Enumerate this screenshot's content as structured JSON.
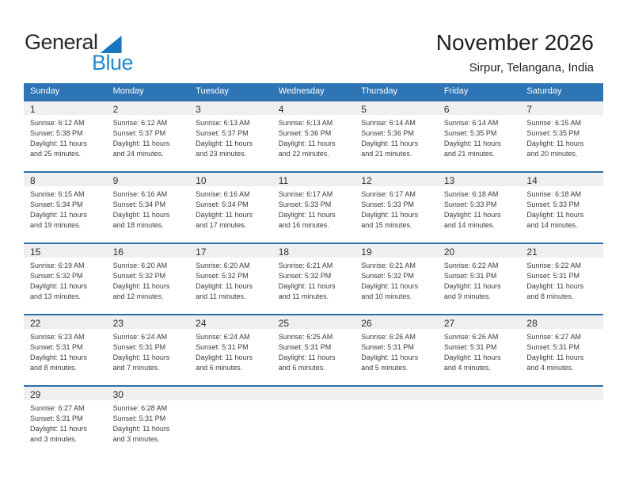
{
  "logo": {
    "general": "General",
    "blue": "Blue"
  },
  "header": {
    "title": "November 2026",
    "subtitle": "Sirpur, Telangana, India"
  },
  "weekday_headers": [
    "Sunday",
    "Monday",
    "Tuesday",
    "Wednesday",
    "Thursday",
    "Friday",
    "Saturday"
  ],
  "colors": {
    "header_bg": "#2e75b6",
    "week_line": "#2c70ad",
    "day_strip_bg": "#efefef",
    "logo_triangle": "#1b75bc",
    "logo_blue_text": "#2288cf"
  },
  "weeks": [
    [
      {
        "day": "1",
        "sunrise": "Sunrise: 6:12 AM",
        "sunset": "Sunset: 5:38 PM",
        "daylight1": "Daylight: 11 hours",
        "daylight2": "and 25 minutes."
      },
      {
        "day": "2",
        "sunrise": "Sunrise: 6:12 AM",
        "sunset": "Sunset: 5:37 PM",
        "daylight1": "Daylight: 11 hours",
        "daylight2": "and 24 minutes."
      },
      {
        "day": "3",
        "sunrise": "Sunrise: 6:13 AM",
        "sunset": "Sunset: 5:37 PM",
        "daylight1": "Daylight: 11 hours",
        "daylight2": "and 23 minutes."
      },
      {
        "day": "4",
        "sunrise": "Sunrise: 6:13 AM",
        "sunset": "Sunset: 5:36 PM",
        "daylight1": "Daylight: 11 hours",
        "daylight2": "and 22 minutes."
      },
      {
        "day": "5",
        "sunrise": "Sunrise: 6:14 AM",
        "sunset": "Sunset: 5:36 PM",
        "daylight1": "Daylight: 11 hours",
        "daylight2": "and 21 minutes."
      },
      {
        "day": "6",
        "sunrise": "Sunrise: 6:14 AM",
        "sunset": "Sunset: 5:35 PM",
        "daylight1": "Daylight: 11 hours",
        "daylight2": "and 21 minutes."
      },
      {
        "day": "7",
        "sunrise": "Sunrise: 6:15 AM",
        "sunset": "Sunset: 5:35 PM",
        "daylight1": "Daylight: 11 hours",
        "daylight2": "and 20 minutes."
      }
    ],
    [
      {
        "day": "8",
        "sunrise": "Sunrise: 6:15 AM",
        "sunset": "Sunset: 5:34 PM",
        "daylight1": "Daylight: 11 hours",
        "daylight2": "and 19 minutes."
      },
      {
        "day": "9",
        "sunrise": "Sunrise: 6:16 AM",
        "sunset": "Sunset: 5:34 PM",
        "daylight1": "Daylight: 11 hours",
        "daylight2": "and 18 minutes."
      },
      {
        "day": "10",
        "sunrise": "Sunrise: 6:16 AM",
        "sunset": "Sunset: 5:34 PM",
        "daylight1": "Daylight: 11 hours",
        "daylight2": "and 17 minutes."
      },
      {
        "day": "11",
        "sunrise": "Sunrise: 6:17 AM",
        "sunset": "Sunset: 5:33 PM",
        "daylight1": "Daylight: 11 hours",
        "daylight2": "and 16 minutes."
      },
      {
        "day": "12",
        "sunrise": "Sunrise: 6:17 AM",
        "sunset": "Sunset: 5:33 PM",
        "daylight1": "Daylight: 11 hours",
        "daylight2": "and 15 minutes."
      },
      {
        "day": "13",
        "sunrise": "Sunrise: 6:18 AM",
        "sunset": "Sunset: 5:33 PM",
        "daylight1": "Daylight: 11 hours",
        "daylight2": "and 14 minutes."
      },
      {
        "day": "14",
        "sunrise": "Sunrise: 6:18 AM",
        "sunset": "Sunset: 5:33 PM",
        "daylight1": "Daylight: 11 hours",
        "daylight2": "and 14 minutes."
      }
    ],
    [
      {
        "day": "15",
        "sunrise": "Sunrise: 6:19 AM",
        "sunset": "Sunset: 5:32 PM",
        "daylight1": "Daylight: 11 hours",
        "daylight2": "and 13 minutes."
      },
      {
        "day": "16",
        "sunrise": "Sunrise: 6:20 AM",
        "sunset": "Sunset: 5:32 PM",
        "daylight1": "Daylight: 11 hours",
        "daylight2": "and 12 minutes."
      },
      {
        "day": "17",
        "sunrise": "Sunrise: 6:20 AM",
        "sunset": "Sunset: 5:32 PM",
        "daylight1": "Daylight: 11 hours",
        "daylight2": "and 11 minutes."
      },
      {
        "day": "18",
        "sunrise": "Sunrise: 6:21 AM",
        "sunset": "Sunset: 5:32 PM",
        "daylight1": "Daylight: 11 hours",
        "daylight2": "and 11 minutes."
      },
      {
        "day": "19",
        "sunrise": "Sunrise: 6:21 AM",
        "sunset": "Sunset: 5:32 PM",
        "daylight1": "Daylight: 11 hours",
        "daylight2": "and 10 minutes."
      },
      {
        "day": "20",
        "sunrise": "Sunrise: 6:22 AM",
        "sunset": "Sunset: 5:31 PM",
        "daylight1": "Daylight: 11 hours",
        "daylight2": "and 9 minutes."
      },
      {
        "day": "21",
        "sunrise": "Sunrise: 6:22 AM",
        "sunset": "Sunset: 5:31 PM",
        "daylight1": "Daylight: 11 hours",
        "daylight2": "and 8 minutes."
      }
    ],
    [
      {
        "day": "22",
        "sunrise": "Sunrise: 6:23 AM",
        "sunset": "Sunset: 5:31 PM",
        "daylight1": "Daylight: 11 hours",
        "daylight2": "and 8 minutes."
      },
      {
        "day": "23",
        "sunrise": "Sunrise: 6:24 AM",
        "sunset": "Sunset: 5:31 PM",
        "daylight1": "Daylight: 11 hours",
        "daylight2": "and 7 minutes."
      },
      {
        "day": "24",
        "sunrise": "Sunrise: 6:24 AM",
        "sunset": "Sunset: 5:31 PM",
        "daylight1": "Daylight: 11 hours",
        "daylight2": "and 6 minutes."
      },
      {
        "day": "25",
        "sunrise": "Sunrise: 6:25 AM",
        "sunset": "Sunset: 5:31 PM",
        "daylight1": "Daylight: 11 hours",
        "daylight2": "and 6 minutes."
      },
      {
        "day": "26",
        "sunrise": "Sunrise: 6:26 AM",
        "sunset": "Sunset: 5:31 PM",
        "daylight1": "Daylight: 11 hours",
        "daylight2": "and 5 minutes."
      },
      {
        "day": "27",
        "sunrise": "Sunrise: 6:26 AM",
        "sunset": "Sunset: 5:31 PM",
        "daylight1": "Daylight: 11 hours",
        "daylight2": "and 4 minutes."
      },
      {
        "day": "28",
        "sunrise": "Sunrise: 6:27 AM",
        "sunset": "Sunset: 5:31 PM",
        "daylight1": "Daylight: 11 hours",
        "daylight2": "and 4 minutes."
      }
    ],
    [
      {
        "day": "29",
        "sunrise": "Sunrise: 6:27 AM",
        "sunset": "Sunset: 5:31 PM",
        "daylight1": "Daylight: 11 hours",
        "daylight2": "and 3 minutes."
      },
      {
        "day": "30",
        "sunrise": "Sunrise: 6:28 AM",
        "sunset": "Sunset: 5:31 PM",
        "daylight1": "Daylight: 11 hours",
        "daylight2": "and 3 minutes."
      },
      {},
      {},
      {},
      {},
      {}
    ]
  ]
}
